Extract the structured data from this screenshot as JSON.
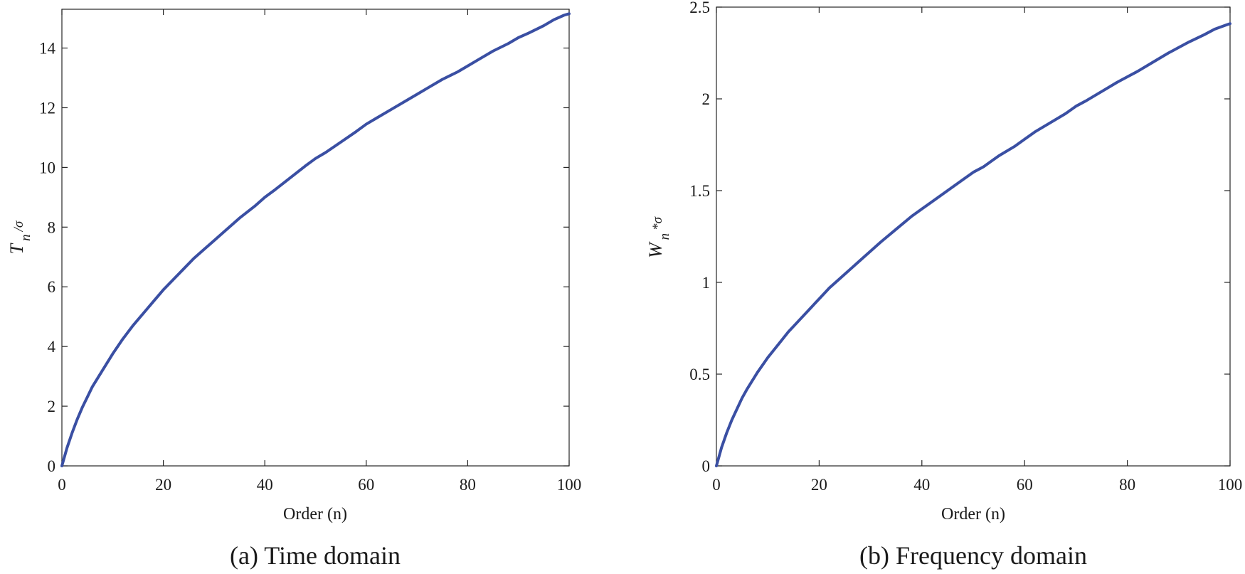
{
  "chart_data": [
    {
      "type": "line",
      "caption": "(a) Time domain",
      "xlabel": "Order (n)",
      "ylabel": {
        "main": "T",
        "sub": "n",
        "suffix": "/σ"
      },
      "xlim": [
        0,
        100
      ],
      "ylim": [
        0,
        15.3
      ],
      "xticks": [
        0,
        20,
        40,
        60,
        80,
        100
      ],
      "yticks": [
        0,
        2,
        4,
        6,
        8,
        10,
        12,
        14
      ],
      "grid": false,
      "color": "#3a4fa3",
      "series": [
        {
          "x": [
            0,
            1,
            2,
            3,
            4,
            5,
            6,
            8,
            10,
            12,
            14,
            16,
            18,
            20,
            22,
            24,
            26,
            28,
            30,
            32,
            35,
            38,
            40,
            42,
            45,
            48,
            50,
            52,
            55,
            58,
            60,
            62,
            65,
            68,
            70,
            72,
            75,
            78,
            80,
            82,
            85,
            88,
            90,
            92,
            95,
            97,
            99,
            100
          ],
          "y": [
            0,
            0.6,
            1.1,
            1.55,
            1.95,
            2.3,
            2.65,
            3.2,
            3.75,
            4.25,
            4.7,
            5.1,
            5.5,
            5.9,
            6.25,
            6.6,
            6.95,
            7.25,
            7.55,
            7.85,
            8.3,
            8.7,
            9.0,
            9.25,
            9.65,
            10.05,
            10.3,
            10.5,
            10.85,
            11.2,
            11.45,
            11.65,
            11.95,
            12.25,
            12.45,
            12.65,
            12.95,
            13.2,
            13.4,
            13.6,
            13.9,
            14.15,
            14.35,
            14.5,
            14.75,
            14.95,
            15.1,
            15.15
          ]
        }
      ]
    },
    {
      "type": "line",
      "caption": "(b) Frequency domain",
      "xlabel": "Order (n)",
      "ylabel": {
        "main": "W",
        "sub": "n",
        "suffix": "*σ"
      },
      "xlim": [
        0,
        100
      ],
      "ylim": [
        0,
        2.5
      ],
      "xticks": [
        0,
        20,
        40,
        60,
        80,
        100
      ],
      "yticks": [
        0,
        0.5,
        1,
        1.5,
        2,
        2.5
      ],
      "ytick_labels": [
        "0",
        "0.5",
        "1",
        "1.5",
        "2",
        "2.5"
      ],
      "grid": false,
      "color": "#3a4fa3",
      "series": [
        {
          "x": [
            0,
            1,
            2,
            3,
            4,
            5,
            6,
            8,
            10,
            12,
            14,
            16,
            18,
            20,
            22,
            24,
            26,
            28,
            30,
            32,
            35,
            38,
            40,
            42,
            45,
            48,
            50,
            52,
            55,
            58,
            60,
            62,
            65,
            68,
            70,
            72,
            75,
            78,
            80,
            82,
            85,
            88,
            90,
            92,
            95,
            97,
            99,
            100
          ],
          "y": [
            0,
            0.1,
            0.18,
            0.25,
            0.31,
            0.37,
            0.42,
            0.51,
            0.59,
            0.66,
            0.73,
            0.79,
            0.85,
            0.91,
            0.97,
            1.02,
            1.07,
            1.12,
            1.17,
            1.22,
            1.29,
            1.36,
            1.4,
            1.44,
            1.5,
            1.56,
            1.6,
            1.63,
            1.69,
            1.74,
            1.78,
            1.82,
            1.87,
            1.92,
            1.96,
            1.99,
            2.04,
            2.09,
            2.12,
            2.15,
            2.2,
            2.25,
            2.28,
            2.31,
            2.35,
            2.38,
            2.4,
            2.41
          ]
        }
      ]
    }
  ]
}
